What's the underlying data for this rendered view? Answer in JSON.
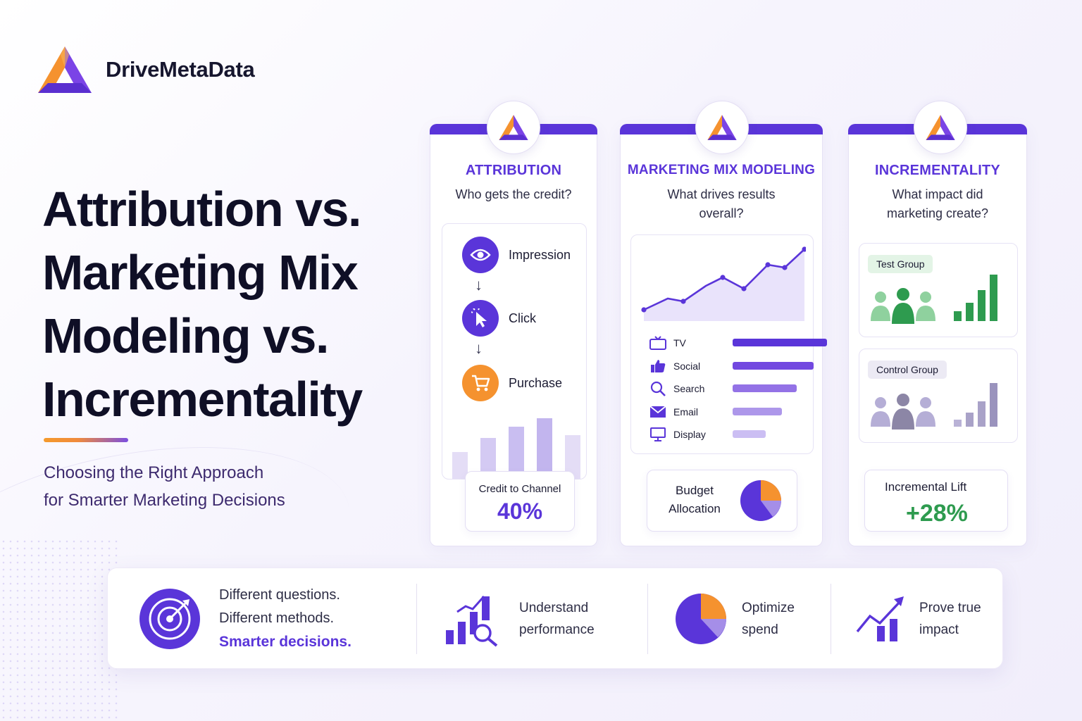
{
  "brand": {
    "name": "DriveMetaData"
  },
  "hero": {
    "title_lines": [
      "Attribution vs.",
      "Marketing Mix",
      "Modeling vs.",
      "Incrementality"
    ],
    "subtitle_lines": [
      "Choosing the Right Approach",
      "for Smarter Marketing Decisions"
    ]
  },
  "attribution": {
    "title": "ATTRIBUTION",
    "question": "Who gets the credit?",
    "steps": [
      {
        "label": "Impression",
        "icon": "eye-icon",
        "color": "#5a35d9"
      },
      {
        "label": "Click",
        "icon": "cursor-icon",
        "color": "#5a35d9"
      },
      {
        "label": "Purchase",
        "icon": "cart-icon",
        "color": "#f5922f"
      }
    ],
    "credit_label": "Credit to Channel",
    "credit_value": "40%"
  },
  "mmm": {
    "title": "MARKETING MIX MODELING",
    "question_lines": [
      "What drives results",
      "overall?"
    ],
    "channels": [
      {
        "label": "TV",
        "icon": "tv-icon",
        "share": 1.0,
        "color": "#5a35d9"
      },
      {
        "label": "Social",
        "icon": "thumbs-up-icon",
        "share": 0.86,
        "color": "#7248e0"
      },
      {
        "label": "Search",
        "icon": "search-icon",
        "share": 0.68,
        "color": "#9372e6"
      },
      {
        "label": "Email",
        "icon": "email-icon",
        "share": 0.52,
        "color": "#ad97ea"
      },
      {
        "label": "Display",
        "icon": "monitor-icon",
        "share": 0.35,
        "color": "#cbbef3"
      }
    ],
    "budget_label_lines": [
      "Budget",
      "Allocation"
    ]
  },
  "incrementality": {
    "title": "INCREMENTALITY",
    "question_lines": [
      "What impact did",
      "marketing create?"
    ],
    "test_group": "Test Group",
    "control_group": "Control Group",
    "lift_label": "Incremental Lift",
    "lift_value": "+28%"
  },
  "strip": {
    "tagline_1": "Different questions.",
    "tagline_2": "Different methods.",
    "tagline_em": "Smarter decisions.",
    "benefit_1": [
      "Understand",
      "performance"
    ],
    "benefit_2": [
      "Optimize",
      "spend"
    ],
    "benefit_3": [
      "Prove true",
      "impact"
    ]
  },
  "colors": {
    "primary": "#5a35d9",
    "accent": "#f5922f",
    "green": "#2e9b4f"
  }
}
